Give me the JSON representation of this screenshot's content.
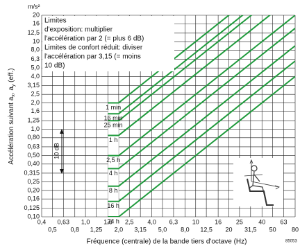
{
  "chart_data": {
    "type": "line",
    "y_unit": "m/s²",
    "y_label": [
      "Accélération suivant a",
      "x",
      ", a",
      "y",
      " (eff.)"
    ],
    "x_label": "Fréquence (centrale) de la bande tiers d'octave (Hz)",
    "annotation": [
      "Limites",
      "d'exposition: multiplier",
      "l'accélération par 2 (= plus 6 dB)",
      "Limites de confort réduit: diviser",
      "l'accélération par 3,15 (= moins",
      "10 dB)"
    ],
    "scale_annotation": "10 dB",
    "figure_code": "85053",
    "log_x": true,
    "log_y": true,
    "grid": true,
    "xlim": [
      0.4,
      80
    ],
    "ylim": [
      0.1,
      20
    ],
    "xticks": [
      {
        "value": 0.4,
        "label": "0,4"
      },
      {
        "value": 0.5,
        "label": "0,5"
      },
      {
        "value": 0.63,
        "label": "0,63"
      },
      {
        "value": 0.8,
        "label": "0,8"
      },
      {
        "value": 1.0,
        "label": "1,0"
      },
      {
        "value": 1.25,
        "label": "1,25"
      },
      {
        "value": 1.6,
        "label": "1,6"
      },
      {
        "value": 2.0,
        "label": "2,0"
      },
      {
        "value": 2.5,
        "label": "2,5"
      },
      {
        "value": 3.15,
        "label": "3,15"
      },
      {
        "value": 4.0,
        "label": "4,0"
      },
      {
        "value": 5.0,
        "label": "5,0"
      },
      {
        "value": 6.3,
        "label": "6,3"
      },
      {
        "value": 8.0,
        "label": "8,0"
      },
      10,
      {
        "value": 12.5,
        "label": "12,5"
      },
      16,
      20,
      25,
      {
        "value": 31.5,
        "label": "31,5"
      },
      40,
      50,
      63,
      80
    ],
    "yticks": [
      {
        "value": 0.1,
        "label": "0,10"
      },
      {
        "value": 0.125,
        "label": "0,125"
      },
      {
        "value": 0.16,
        "label": "0,16"
      },
      {
        "value": 0.2,
        "label": "0,20"
      },
      {
        "value": 0.25,
        "label": "0,25"
      },
      {
        "value": 0.315,
        "label": "0,315"
      },
      {
        "value": 0.4,
        "label": "0,40"
      },
      {
        "value": 0.5,
        "label": "0,50"
      },
      {
        "value": 0.63,
        "label": "0,63"
      },
      {
        "value": 0.8,
        "label": "0,80"
      },
      {
        "value": 1.0,
        "label": "1,0"
      },
      {
        "value": 1.25,
        "label": "1,25"
      },
      {
        "value": 1.6,
        "label": "1,6"
      },
      {
        "value": 2.0,
        "label": "2,0"
      },
      {
        "value": 2.5,
        "label": "2,5"
      },
      {
        "value": 3.15,
        "label": "3,15"
      },
      {
        "value": 4.0,
        "label": "4,0"
      },
      {
        "value": 5.0,
        "label": "5,0"
      },
      {
        "value": 6.3,
        "label": "6,3"
      },
      {
        "value": 8.0,
        "label": "8,0"
      },
      10,
      {
        "value": 12.5,
        "label": "12,5"
      },
      16,
      20
    ],
    "series": [
      {
        "name": "1 min",
        "color": "#1f9a3c",
        "x": [
          1.6,
          2.0,
          80
        ],
        "values": [
          2.0,
          2.0,
          80
        ]
      },
      {
        "name": "16 min",
        "color": "#1f9a3c",
        "x": [
          1.6,
          2.0,
          80
        ],
        "values": [
          1.5,
          1.5,
          60
        ]
      },
      {
        "name": "25 min",
        "color": "#1f9a3c",
        "x": [
          1.6,
          2.0,
          80
        ],
        "values": [
          1.25,
          1.25,
          50
        ]
      },
      {
        "name": "1 h",
        "color": "#1f9a3c",
        "x": [
          1.6,
          2.0,
          80
        ],
        "values": [
          0.85,
          0.85,
          34
        ]
      },
      {
        "name": "2,5 h",
        "color": "#1f9a3c",
        "x": [
          1.6,
          2.0,
          80
        ],
        "values": [
          0.5,
          0.5,
          20
        ]
      },
      {
        "name": "4 h",
        "color": "#1f9a3c",
        "x": [
          1.6,
          2.0,
          80
        ],
        "values": [
          0.355,
          0.355,
          14.2
        ]
      },
      {
        "name": "8 h",
        "color": "#1f9a3c",
        "x": [
          1.6,
          2.0,
          80
        ],
        "values": [
          0.224,
          0.224,
          8.96
        ]
      },
      {
        "name": "16 h",
        "color": "#1f9a3c",
        "x": [
          1.6,
          2.0,
          80
        ],
        "values": [
          0.15,
          0.15,
          6.0
        ]
      },
      {
        "name": "24 h",
        "color": "#1f9a3c",
        "x": [
          1.6,
          2.0,
          80
        ],
        "values": [
          0.1,
          0.1,
          4.0
        ]
      }
    ]
  }
}
